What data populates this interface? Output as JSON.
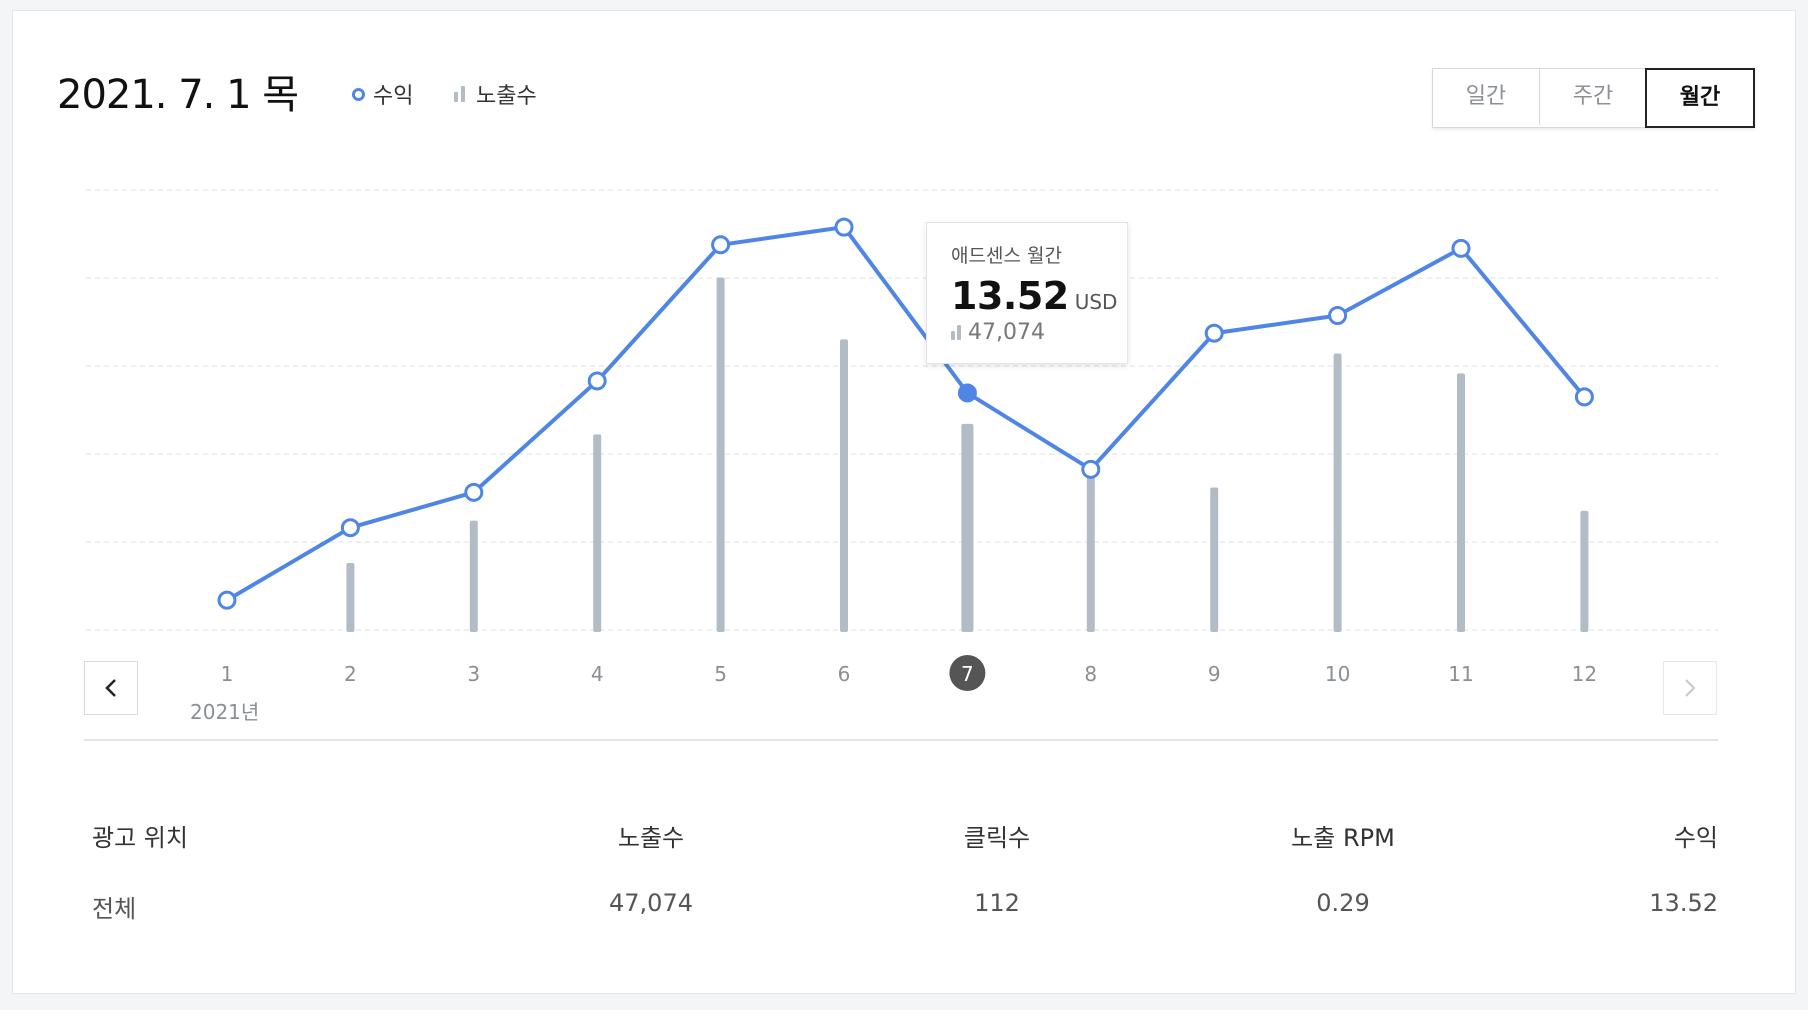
{
  "header": {
    "date_title": "2021. 7. 1 목",
    "legend_revenue": "수익",
    "legend_impressions": "노출수"
  },
  "period_toggle": {
    "options": [
      "일간",
      "주간",
      "월간"
    ],
    "selected": "월간"
  },
  "tooltip": {
    "title": "애드센스 월간",
    "value": "13.52",
    "unit": "USD",
    "impressions": "47,074"
  },
  "year_label": "2021년",
  "chart_data": {
    "type": "line+bar",
    "categories": [
      "1",
      "2",
      "3",
      "4",
      "5",
      "6",
      "7",
      "8",
      "9",
      "10",
      "11",
      "12"
    ],
    "series": [
      {
        "name": "수익",
        "type": "line",
        "values": [
          1.8,
          5.9,
          7.9,
          14.2,
          21.9,
          22.9,
          13.52,
          9.2,
          16.9,
          17.9,
          21.7,
          13.3
        ]
      },
      {
        "name": "노출수",
        "type": "bar",
        "values": [
          0,
          15600,
          25200,
          44700,
          80200,
          66200,
          47074,
          36900,
          32700,
          63000,
          58500,
          27400
        ]
      }
    ],
    "selected_index": 6,
    "grid": true,
    "colors": {
      "line": "#4f86e5",
      "bar": "#b2bcc6",
      "selected_badge": "#555555"
    }
  },
  "table": {
    "headers": [
      "광고 위치",
      "노출수",
      "클릭수",
      "노출 RPM",
      "수익"
    ],
    "rows": [
      [
        "전체",
        "47,074",
        "112",
        "0.29",
        "13.52"
      ]
    ]
  }
}
